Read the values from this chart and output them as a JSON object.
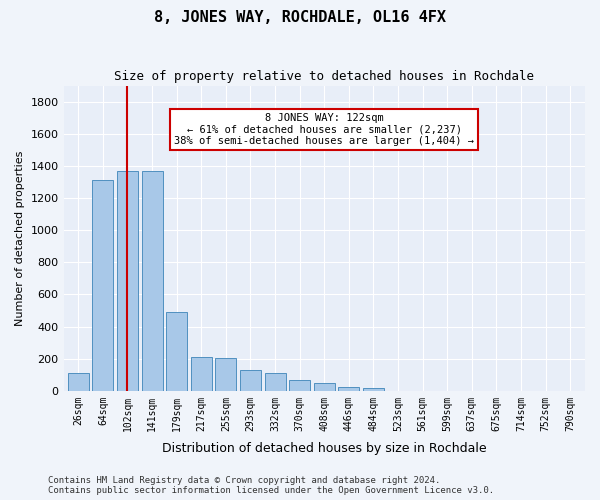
{
  "title": "8, JONES WAY, ROCHDALE, OL16 4FX",
  "subtitle": "Size of property relative to detached houses in Rochdale",
  "xlabel": "Distribution of detached houses by size in Rochdale",
  "ylabel": "Number of detached properties",
  "bar_color": "#a8c8e8",
  "bar_edge_color": "#5090c0",
  "bg_color": "#e8eef8",
  "categories": [
    "26sqm",
    "64sqm",
    "102sqm",
    "141sqm",
    "179sqm",
    "217sqm",
    "255sqm",
    "293sqm",
    "332sqm",
    "370sqm",
    "408sqm",
    "446sqm",
    "484sqm",
    "523sqm",
    "561sqm",
    "599sqm",
    "637sqm",
    "675sqm",
    "714sqm",
    "752sqm",
    "790sqm"
  ],
  "values": [
    110,
    1310,
    1370,
    1370,
    490,
    210,
    205,
    130,
    110,
    65,
    50,
    25,
    20,
    0,
    0,
    0,
    0,
    0,
    0,
    0,
    0
  ],
  "property_size": 122,
  "property_bin_index": 2,
  "vline_color": "#cc0000",
  "annotation_text": "8 JONES WAY: 122sqm\n← 61% of detached houses are smaller (2,237)\n38% of semi-detached houses are larger (1,404) →",
  "annotation_box_color": "#ffffff",
  "annotation_box_edge": "#cc0000",
  "footer": "Contains HM Land Registry data © Crown copyright and database right 2024.\nContains public sector information licensed under the Open Government Licence v3.0.",
  "ylim": [
    0,
    1900
  ],
  "yticks": [
    0,
    200,
    400,
    600,
    800,
    1000,
    1200,
    1400,
    1600,
    1800
  ]
}
